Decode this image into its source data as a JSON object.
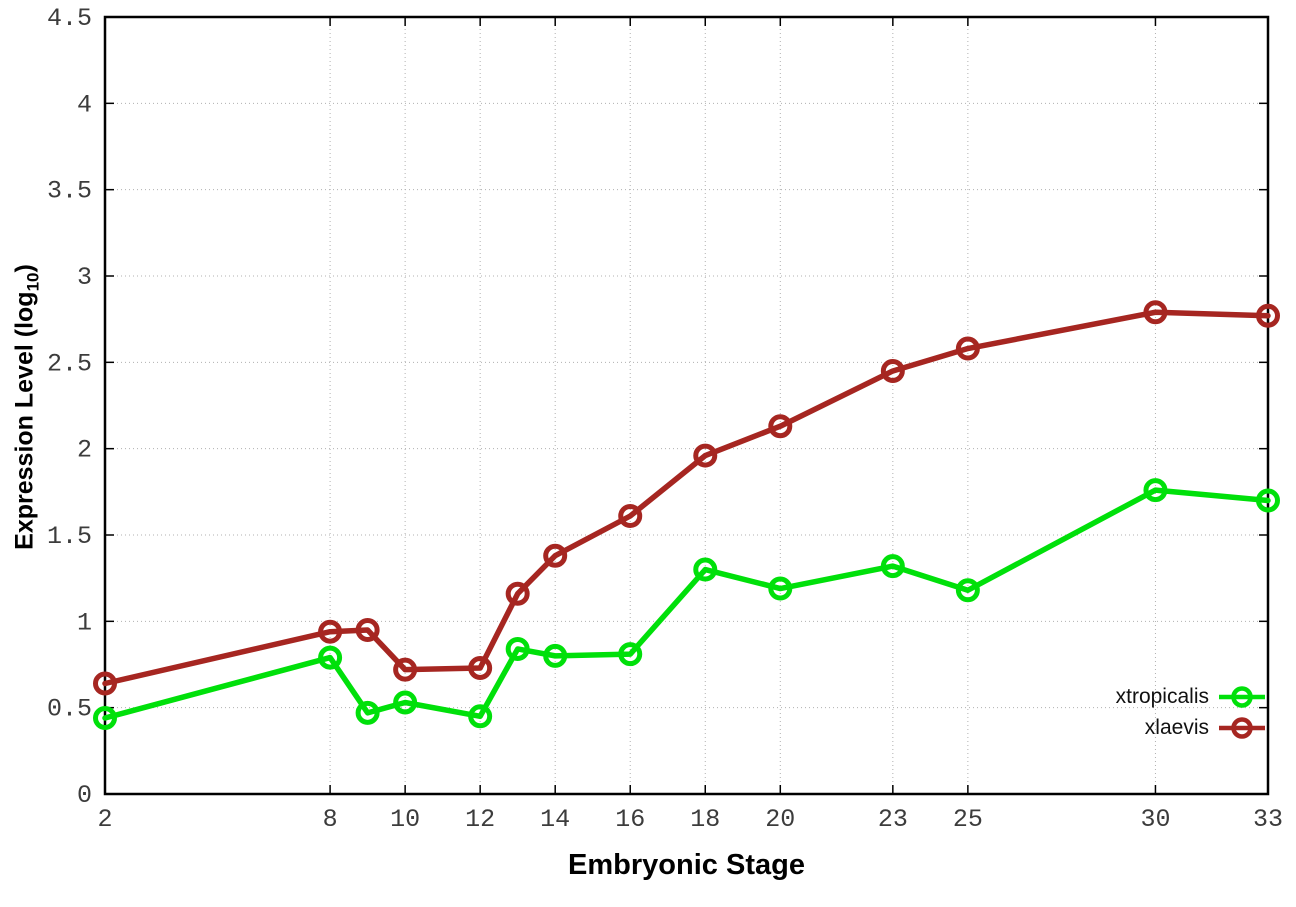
{
  "chart_data": {
    "type": "line",
    "title": "",
    "xlabel": "Embryonic Stage",
    "ylabel": {
      "prefix": "Expression Level (log",
      "sub": "10",
      "suffix": ")"
    },
    "xlim": [
      2,
      33
    ],
    "ylim": [
      0,
      4.5
    ],
    "x_ticks": [
      2,
      8,
      10,
      12,
      14,
      16,
      18,
      20,
      23,
      25,
      30,
      33
    ],
    "x_tick_labels": [
      "2",
      "8",
      "10",
      "12",
      "14",
      "16",
      "18",
      "20",
      "23",
      "25",
      "30",
      "33"
    ],
    "y_ticks": [
      0,
      0.5,
      1,
      1.5,
      2,
      2.5,
      3,
      3.5,
      4,
      4.5
    ],
    "y_tick_labels": [
      "0",
      "0.5",
      "1",
      "1.5",
      "2",
      "2.5",
      "3",
      "3.5",
      "4",
      "4.5"
    ],
    "grid": true,
    "grid_style": "dotted",
    "legend_position": "inside-bottom-right",
    "x": [
      2,
      8,
      9,
      10,
      12,
      13,
      14,
      16,
      18,
      20,
      23,
      25,
      30,
      33
    ],
    "series": [
      {
        "name": "xtropicalis",
        "color": "#00e00a",
        "marker": "open-circle",
        "values": [
          0.44,
          0.79,
          0.47,
          0.53,
          0.45,
          0.84,
          0.8,
          0.81,
          1.3,
          1.19,
          1.32,
          1.18,
          1.76,
          1.7
        ]
      },
      {
        "name": "xlaevis",
        "color": "#a62621",
        "marker": "open-circle",
        "values": [
          0.64,
          0.94,
          0.95,
          0.72,
          0.73,
          1.16,
          1.38,
          1.61,
          1.96,
          2.13,
          2.45,
          2.58,
          2.79,
          2.77
        ]
      }
    ],
    "colors": {
      "axis": "#000000",
      "grid": "#b0b0b0",
      "tick_text": "#3c3c3c"
    }
  }
}
